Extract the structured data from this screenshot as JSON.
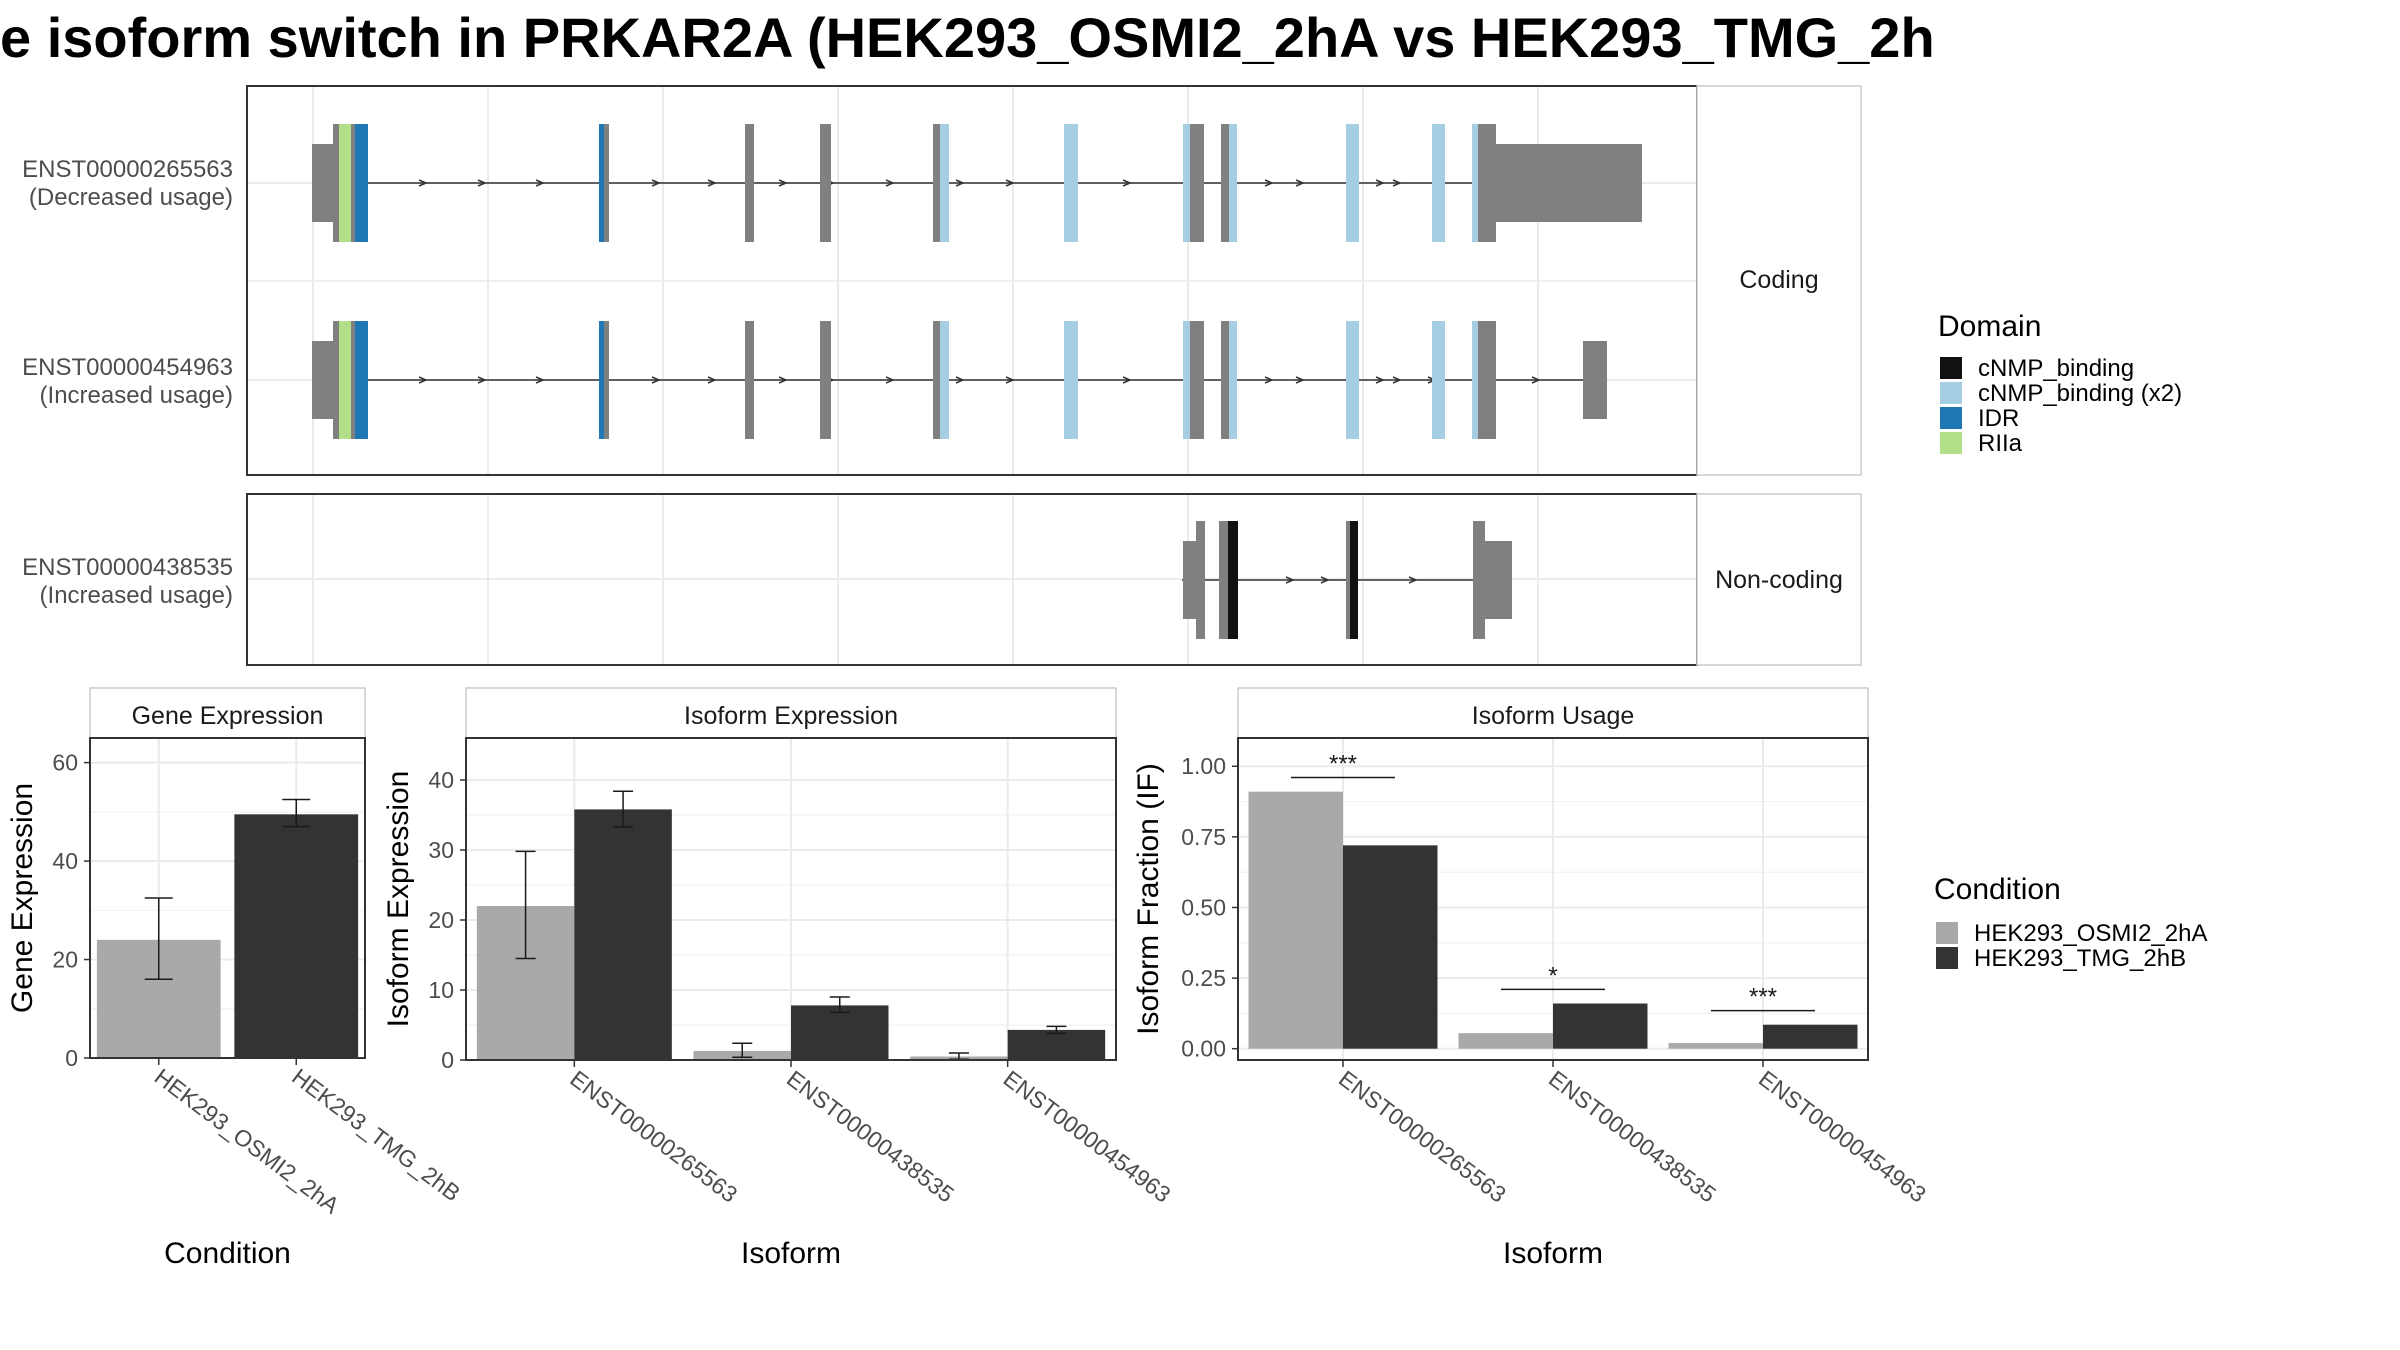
{
  "title": "e isoform switch in PRKAR2A (HEK293_OSMI2_2hA vs HEK293_TMG_2h",
  "colors": {
    "exon": "#808080",
    "cNMP_binding": "#111111",
    "cNMP_binding_x2": "#a6cee3",
    "IDR": "#1f78b4",
    "RIIa": "#b2df8a",
    "cond_A": "#a9a9a9",
    "cond_B": "#333333"
  },
  "domain_legend": {
    "title": "Domain",
    "items": [
      {
        "label": "cNMP_binding",
        "color": "#111111"
      },
      {
        "label": "cNMP_binding (x2)",
        "color": "#a6cee3"
      },
      {
        "label": "IDR",
        "color": "#1f78b4"
      },
      {
        "label": "RIIa",
        "color": "#b2df8a"
      }
    ]
  },
  "condition_legend": {
    "title": "Condition",
    "items": [
      {
        "label": "HEK293_OSMI2_2hA",
        "color": "#a9a9a9"
      },
      {
        "label": "HEK293_TMG_2hB",
        "color": "#333333"
      }
    ]
  },
  "structure": {
    "coding_strip": "Coding",
    "noncoding_strip": "Non-coding",
    "coding": [
      {
        "name": "ENST00000265563",
        "usage": "(Decreased usage)"
      },
      {
        "name": "ENST00000454963",
        "usage": "(Increased usage)"
      }
    ],
    "noncoding": [
      {
        "name": "ENST00000438535",
        "usage": "(Increased usage)"
      }
    ]
  },
  "chart_data": [
    {
      "type": "bar",
      "title": "Gene Expression",
      "xlabel": "Condition",
      "ylabel": "Gene Expression",
      "ylim": [
        0,
        65
      ],
      "yticks": [
        0,
        20,
        40,
        60
      ],
      "categories": [
        "HEK293_OSMI2_2hA",
        "HEK293_TMG_2hB"
      ],
      "values": [
        24,
        49.5
      ],
      "error": [
        [
          16,
          32.5
        ],
        [
          47,
          52.5
        ]
      ],
      "colors": [
        "#a9a9a9",
        "#333333"
      ]
    },
    {
      "type": "bar",
      "title": "Isoform Expression",
      "xlabel": "Isoform",
      "ylabel": "Isoform Expression",
      "ylim": [
        0,
        46
      ],
      "yticks": [
        0,
        10,
        20,
        30,
        40
      ],
      "categories": [
        "ENST00000265563",
        "ENST00000438535",
        "ENST00000454963"
      ],
      "series": [
        {
          "name": "HEK293_OSMI2_2hA",
          "values": [
            22,
            1.3,
            0.5
          ],
          "error": [
            [
              14.5,
              29.8
            ],
            [
              0.4,
              2.4
            ],
            [
              0.1,
              1.0
            ]
          ]
        },
        {
          "name": "HEK293_TMG_2hB",
          "values": [
            35.8,
            7.8,
            4.3
          ],
          "error": [
            [
              33.3,
              38.4
            ],
            [
              6.8,
              9.0
            ],
            [
              3.8,
              4.8
            ]
          ]
        }
      ]
    },
    {
      "type": "bar",
      "title": "Isoform Usage",
      "xlabel": "Isoform",
      "ylabel": "Isoform Fraction (IF)",
      "ylim": [
        -0.04,
        1.1
      ],
      "yticks": [
        "0.00",
        "0.25",
        "0.50",
        "0.75",
        "1.00"
      ],
      "categories": [
        "ENST00000265563",
        "ENST00000438535",
        "ENST00000454963"
      ],
      "series": [
        {
          "name": "HEK293_OSMI2_2hA",
          "values": [
            0.91,
            0.055,
            0.02
          ]
        },
        {
          "name": "HEK293_TMG_2hB",
          "values": [
            0.72,
            0.16,
            0.085
          ]
        }
      ],
      "significance": [
        "***",
        "*",
        "***"
      ],
      "significance_y": [
        0.96,
        0.21,
        0.135
      ]
    }
  ]
}
